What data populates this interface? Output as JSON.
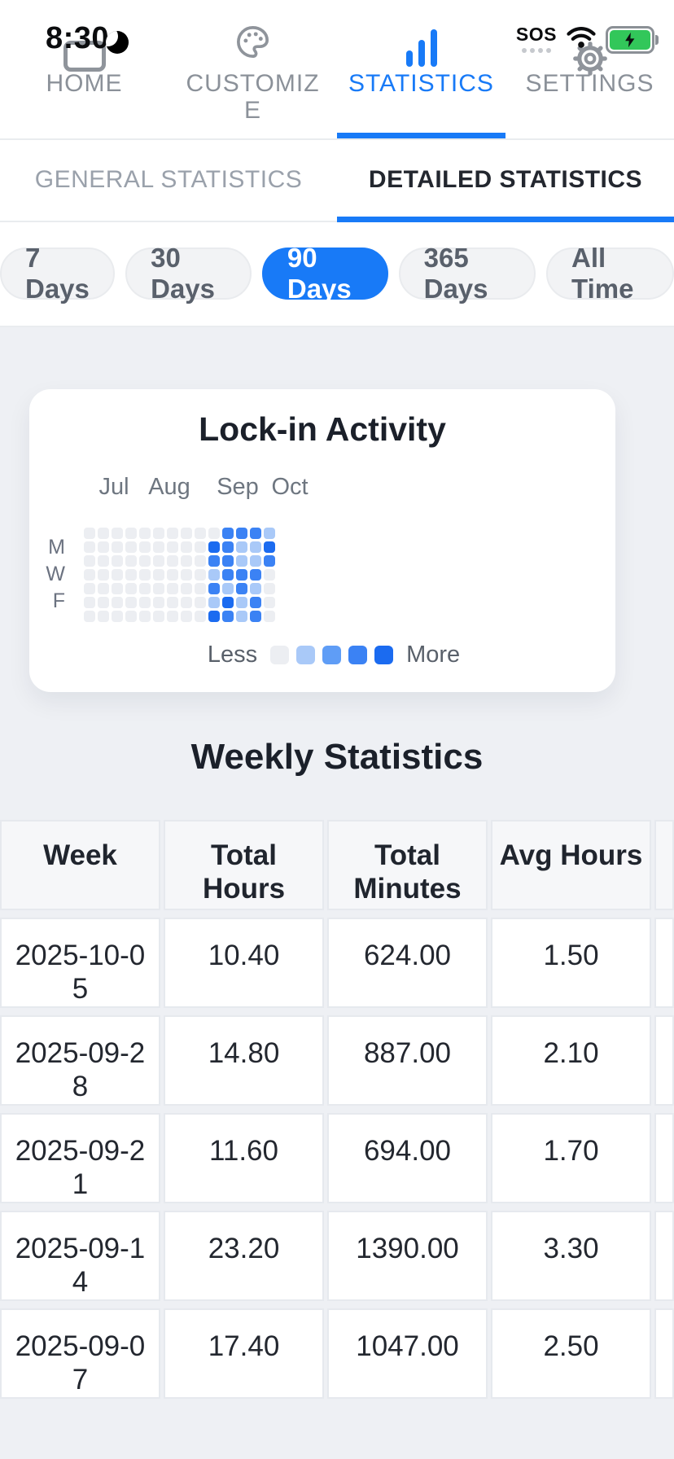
{
  "status_bar": {
    "time": "8:30",
    "sos_label": "SOS",
    "icons": [
      "moon-icon",
      "wifi-icon",
      "battery-charging-icon"
    ]
  },
  "nav_tabs": {
    "items": [
      {
        "label": "HOME",
        "icon": "home-icon"
      },
      {
        "label": "CUSTOMIZE",
        "icon": "palette-icon"
      },
      {
        "label": "STATISTICS",
        "icon": "bar-chart-icon"
      },
      {
        "label": "SETTINGS",
        "icon": "gear-icon"
      }
    ],
    "active_index": 2
  },
  "sub_tabs": {
    "items": [
      "GENERAL STATISTICS",
      "DETAILED STATISTICS"
    ],
    "active_index": 1
  },
  "range_pills": {
    "options": [
      "7 Days",
      "30 Days",
      "90 Days",
      "365 Days",
      "All Time"
    ],
    "selected": "90 Days"
  },
  "activity_card": {
    "title": "Lock-in Activity",
    "months": [
      "Jul",
      "Aug",
      "Sep",
      "Oct"
    ],
    "day_labels": [
      "M",
      "W",
      "F"
    ],
    "legend": {
      "less_label": "Less",
      "more_label": "More"
    },
    "heatmap": {
      "rows": 7,
      "cols": 14,
      "level_colors": [
        "#eceef2",
        "#a9c9f8",
        "#5f9df6",
        "#3b82f4",
        "#1b6bf0"
      ],
      "grid": [
        [
          0,
          0,
          0,
          0,
          0,
          0,
          0,
          0,
          0,
          0,
          3,
          3,
          3,
          1
        ],
        [
          0,
          0,
          0,
          0,
          0,
          0,
          0,
          0,
          0,
          4,
          3,
          1,
          1,
          4
        ],
        [
          0,
          0,
          0,
          0,
          0,
          0,
          0,
          0,
          0,
          3,
          3,
          1,
          1,
          3
        ],
        [
          0,
          0,
          0,
          0,
          0,
          0,
          0,
          0,
          0,
          1,
          3,
          3,
          3,
          0
        ],
        [
          0,
          0,
          0,
          0,
          0,
          0,
          0,
          0,
          0,
          3,
          1,
          3,
          1,
          0
        ],
        [
          0,
          0,
          0,
          0,
          0,
          0,
          0,
          0,
          0,
          1,
          4,
          1,
          3,
          0
        ],
        [
          0,
          0,
          0,
          0,
          0,
          0,
          0,
          0,
          0,
          4,
          3,
          1,
          3,
          0
        ]
      ]
    }
  },
  "weekly_statistics": {
    "title": "Weekly Statistics",
    "columns": [
      "Week",
      "Total Hours",
      "Total Minutes",
      "Avg Hours"
    ],
    "rows": [
      {
        "week": "2025-10-05",
        "total_hours": "10.40",
        "total_minutes": "624.00",
        "avg_hours": "1.50"
      },
      {
        "week": "2025-09-28",
        "total_hours": "14.80",
        "total_minutes": "887.00",
        "avg_hours": "2.10"
      },
      {
        "week": "2025-09-21",
        "total_hours": "11.60",
        "total_minutes": "694.00",
        "avg_hours": "1.70"
      },
      {
        "week": "2025-09-14",
        "total_hours": "23.20",
        "total_minutes": "1390.00",
        "avg_hours": "3.30"
      },
      {
        "week": "2025-09-07",
        "total_hours": "17.40",
        "total_minutes": "1047.00",
        "avg_hours": "2.50"
      }
    ]
  },
  "colors": {
    "accent_blue": "#187af7",
    "battery_green": "#32c75a",
    "page_background": "#eef0f4"
  }
}
